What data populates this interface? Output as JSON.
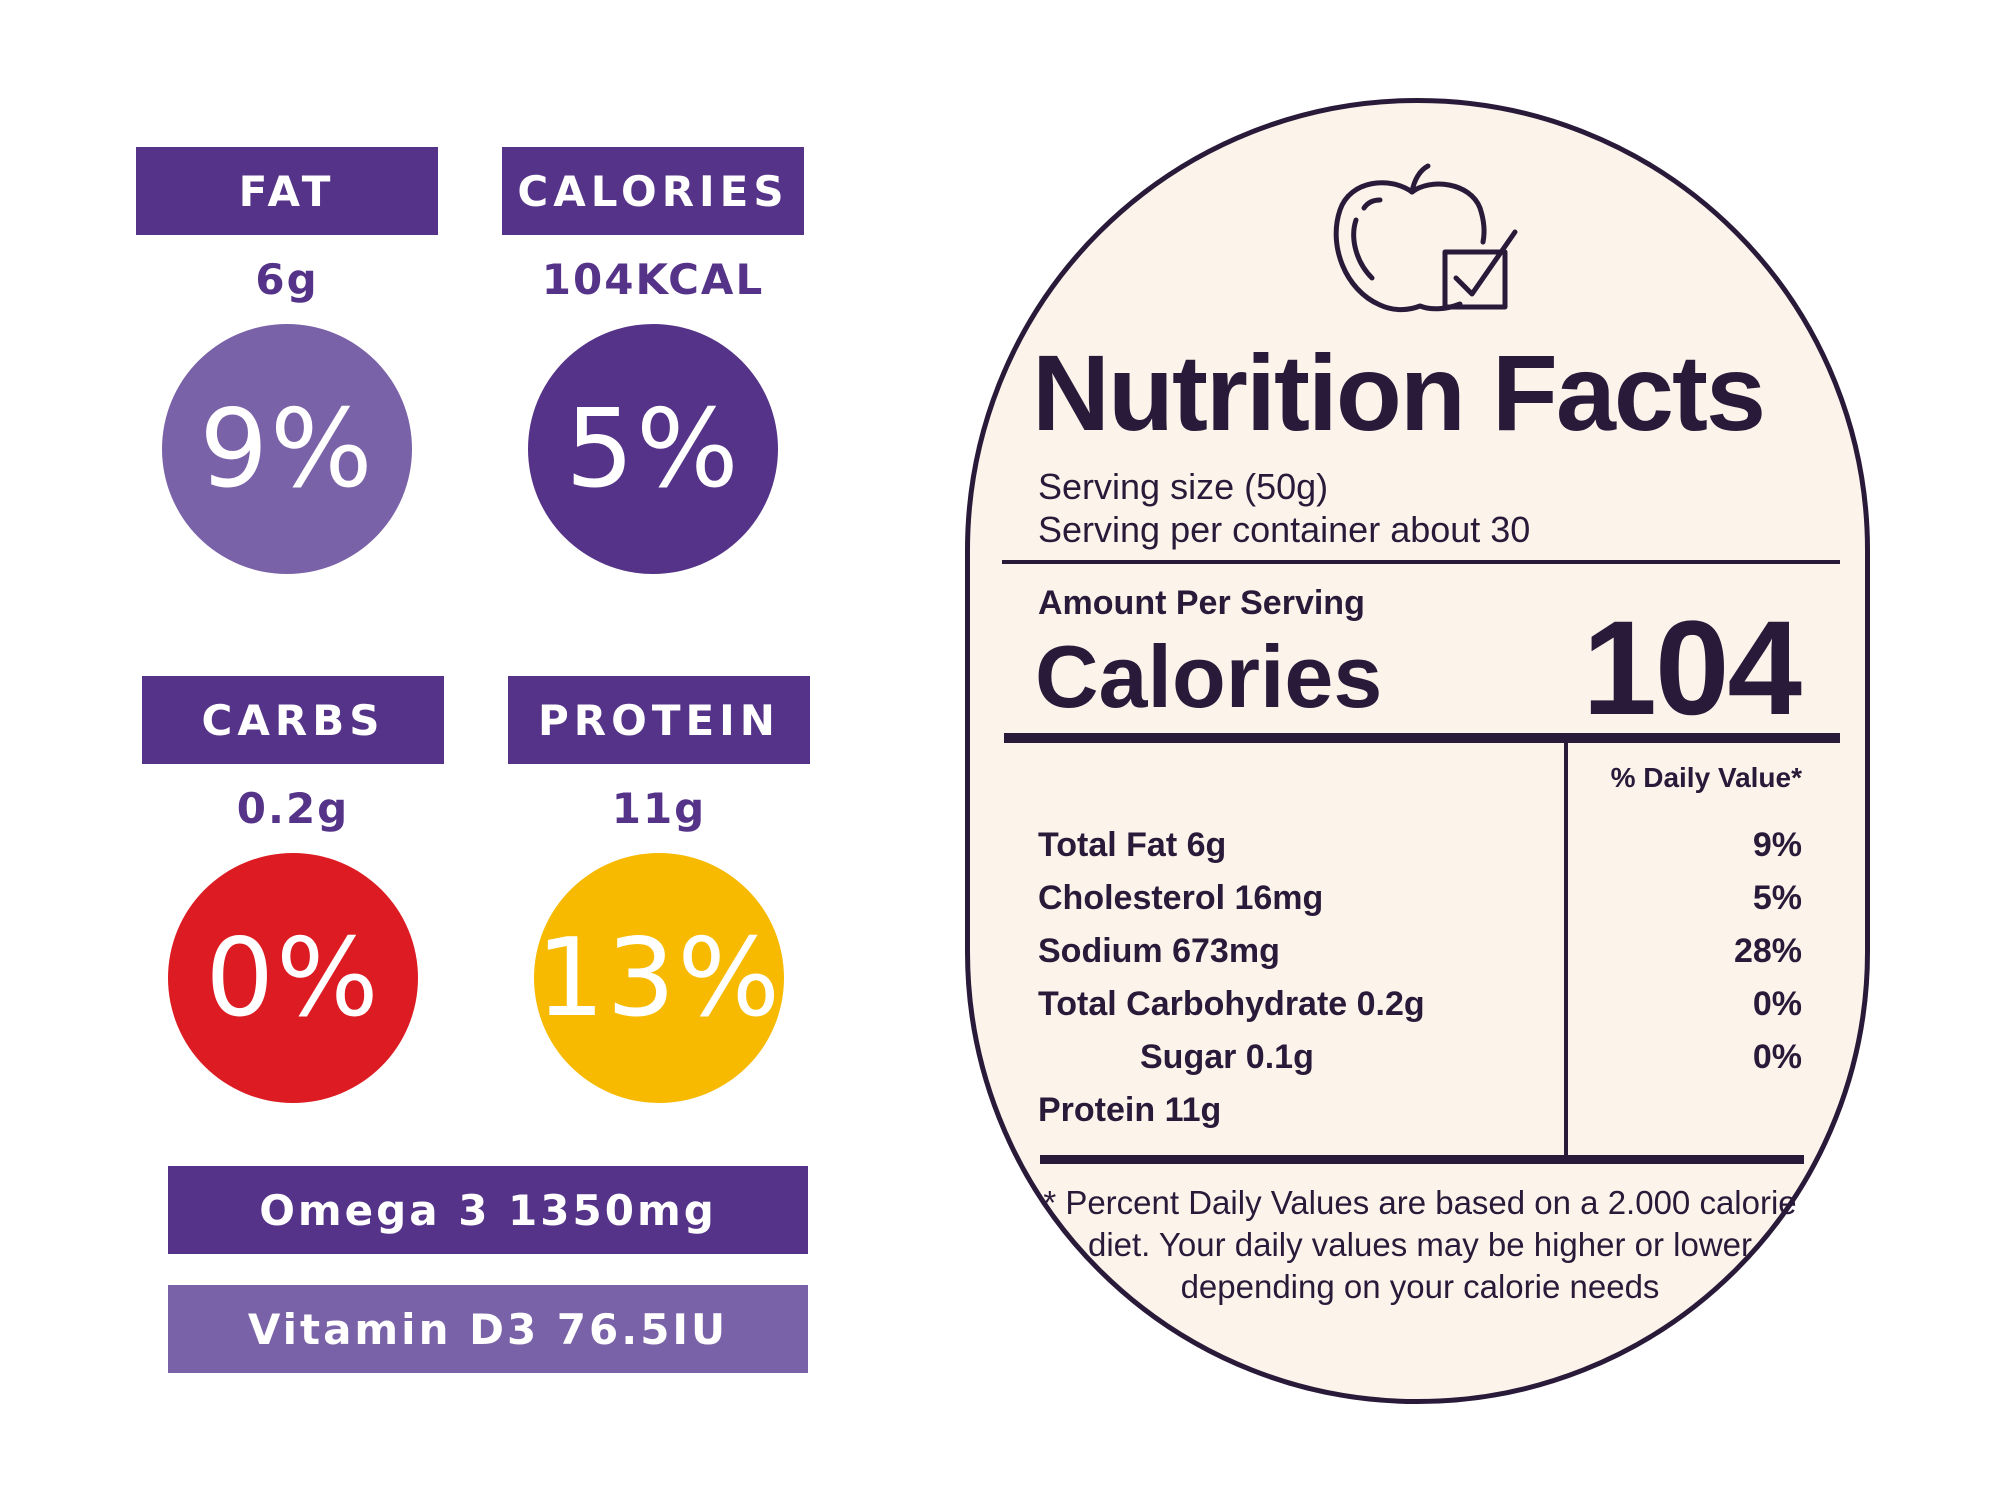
{
  "colors": {
    "purple_dark": "#553388",
    "purple_light": "#7a62a8",
    "red": "#dd1b22",
    "yellow": "#f7ba00",
    "label_bg": "#fcf3ea",
    "label_ink": "#2a1a3a"
  },
  "tiles": [
    {
      "label": "FAT",
      "amount": "6g",
      "percent": "9%",
      "circle_color": "#7a62a8"
    },
    {
      "label": "CALORIES",
      "amount": "104KCAL",
      "percent": "5%",
      "circle_color": "#553388"
    },
    {
      "label": "CARBS",
      "amount": "0.2g",
      "percent": "0%",
      "circle_color": "#dd1b22"
    },
    {
      "label": "PROTEIN",
      "amount": "11g",
      "percent": "13%",
      "circle_color": "#f7ba00"
    }
  ],
  "extras": [
    "Omega 3 1350mg",
    "Vitamin D3 76.5IU"
  ],
  "label": {
    "icon": "apple-checkbox-icon",
    "title": "Nutrition Facts",
    "serving_size": "Serving size (50g)",
    "servings_per_container": "Serving per container about 30",
    "amount_per_serving": "Amount Per Serving",
    "calories_label": "Calories",
    "calories_value": "104",
    "daily_value_header": "% Daily Value*",
    "rows": [
      {
        "name": "Total Fat 6g",
        "pct": "9%"
      },
      {
        "name": "Cholesterol 16mg",
        "pct": "5%"
      },
      {
        "name": "Sodium 673mg",
        "pct": "28%"
      },
      {
        "name": "Total Carbohydrate 0.2g",
        "pct": "0%"
      },
      {
        "name": "Sugar 0.1g",
        "pct": "0%"
      },
      {
        "name": "Protein 11g",
        "pct": ""
      }
    ],
    "footnote": "* Percent Daily Values are based on a 2.000 calorie diet. Your daily values may be higher or lower depending on your calorie needs"
  }
}
